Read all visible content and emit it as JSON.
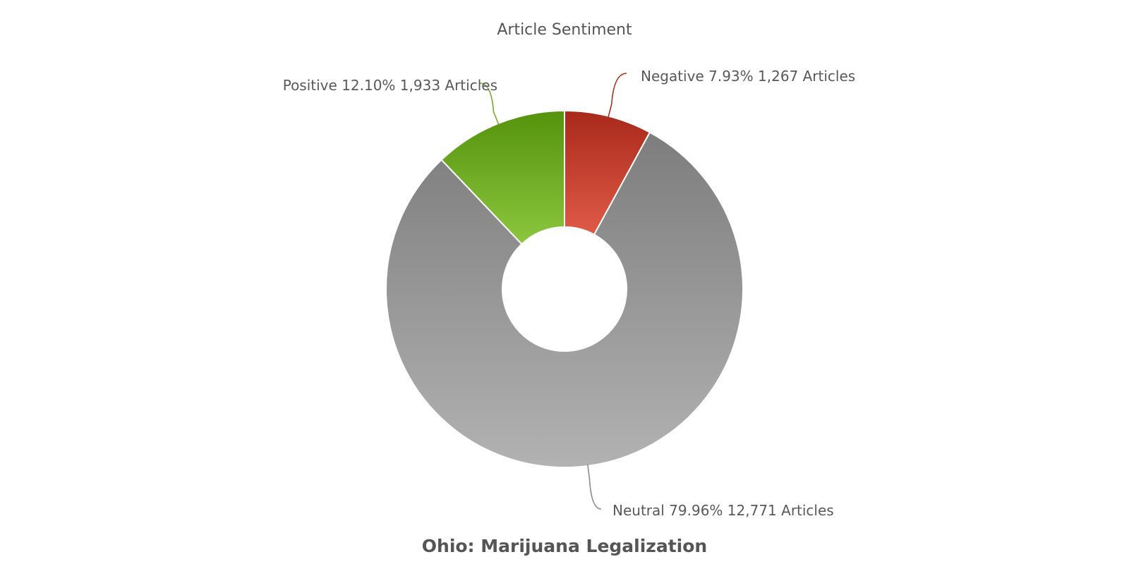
{
  "chart_data": {
    "type": "pie",
    "title": "Article Sentiment",
    "footer": "Ohio: Marijuana Legalization",
    "donut": true,
    "slices": [
      {
        "name": "Negative",
        "percent": 7.93,
        "percent_label": "7.93%",
        "count": 1267,
        "count_label": "1,267 Articles",
        "color_top": "#a8291a",
        "color_bottom": "#e05a48",
        "leader_color": "#b03020"
      },
      {
        "name": "Neutral",
        "percent": 79.96,
        "percent_label": "79.96%",
        "count": 12771,
        "count_label": "12,771 Articles",
        "color_top": "#7d7d7d",
        "color_bottom": "#b2b2b2",
        "leader_color": "#8a8a8a"
      },
      {
        "name": "Positive",
        "percent": 12.1,
        "percent_label": "12.10%",
        "count": 1933,
        "count_label": "1,933 Articles",
        "color_top": "#55930c",
        "color_bottom": "#8cc63f",
        "leader_color": "#7aa82a"
      }
    ]
  }
}
